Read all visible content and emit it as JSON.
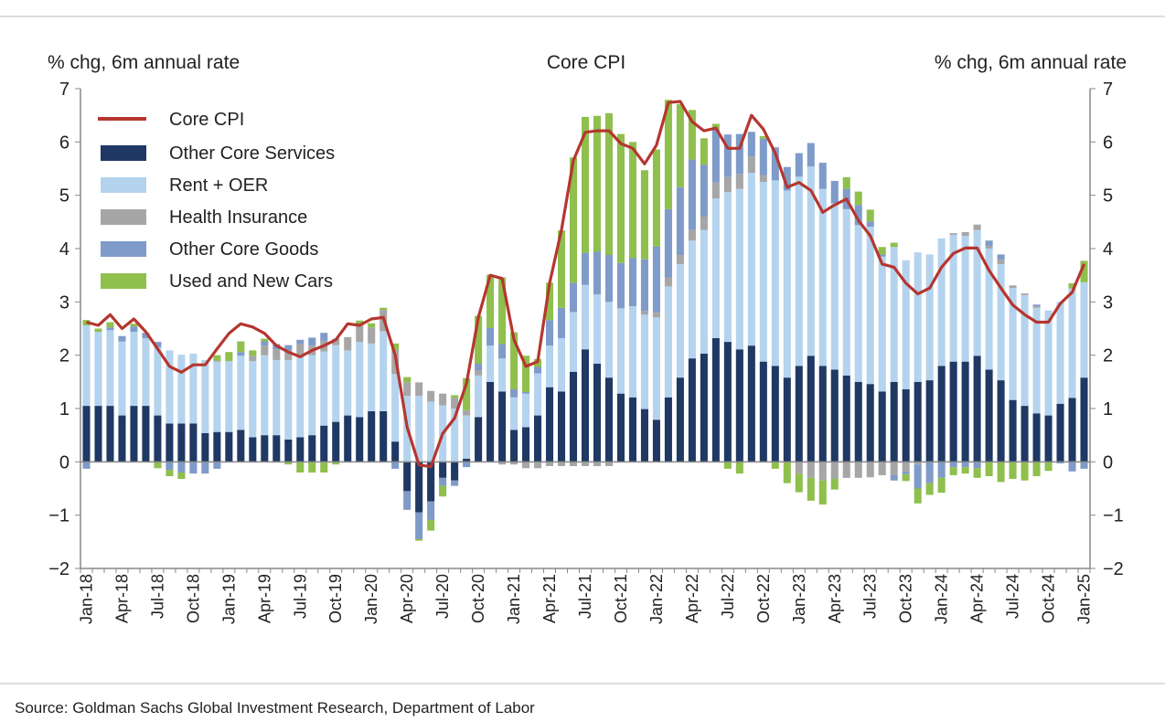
{
  "chart_data": {
    "type": "bar",
    "title": "Core CPI",
    "ylabel_left": "% chg, 6m annual rate",
    "ylabel_right": "% chg, 6m annual rate",
    "ylim": [
      -2,
      7
    ],
    "yticks": [
      "7",
      "6",
      "5",
      "4",
      "3",
      "2",
      "1",
      "0",
      "−1",
      "−2"
    ],
    "ytick_values": [
      7,
      6,
      5,
      4,
      3,
      2,
      1,
      0,
      -1,
      -2
    ],
    "xtick_labels": [
      "Jan-18",
      "Apr-18",
      "Jul-18",
      "Oct-18",
      "Jan-19",
      "Apr-19",
      "Jul-19",
      "Oct-19",
      "Jan-20",
      "Apr-20",
      "Jul-20",
      "Oct-20",
      "Jan-21",
      "Apr-21",
      "Jul-21",
      "Oct-21",
      "Jan-22",
      "Apr-22",
      "Jul-22",
      "Oct-22",
      "Jan-23",
      "Apr-23",
      "Jul-23",
      "Oct-23",
      "Jan-24",
      "Apr-24",
      "Jul-24",
      "Oct-24",
      "Jan-25"
    ],
    "n_months": 85,
    "legend_position": "top-left",
    "line": {
      "name": "Core CPI",
      "color": "#b5362f",
      "values": [
        2.62,
        2.56,
        2.76,
        2.5,
        2.68,
        2.44,
        2.12,
        1.79,
        1.68,
        1.82,
        1.82,
        2.12,
        2.41,
        2.59,
        2.53,
        2.41,
        2.18,
        2.06,
        1.97,
        2.09,
        2.18,
        2.29,
        2.59,
        2.56,
        2.68,
        2.71,
        2.0,
        0.65,
        -0.06,
        -0.09,
        0.53,
        0.82,
        1.47,
        2.71,
        3.5,
        3.44,
        2.29,
        1.79,
        1.88,
        3.35,
        4.35,
        5.65,
        6.18,
        6.21,
        6.21,
        5.97,
        5.88,
        5.59,
        5.94,
        6.74,
        6.76,
        6.38,
        6.21,
        6.26,
        5.88,
        5.88,
        6.5,
        6.24,
        5.79,
        5.15,
        5.24,
        5.09,
        4.68,
        4.82,
        4.93,
        4.53,
        4.24,
        3.71,
        3.65,
        3.35,
        3.15,
        3.26,
        3.65,
        3.91,
        4.01,
        4.01,
        3.59,
        3.26,
        2.94,
        2.76,
        2.62,
        2.62,
        2.97,
        3.18,
        3.71
      ]
    },
    "series": [
      {
        "name": "Other Core Services",
        "color": "#1f3864",
        "values": [
          1.05,
          1.05,
          1.05,
          0.87,
          1.05,
          1.05,
          0.87,
          0.72,
          0.72,
          0.72,
          0.54,
          0.56,
          0.56,
          0.6,
          0.46,
          0.5,
          0.5,
          0.42,
          0.46,
          0.5,
          0.68,
          0.75,
          0.87,
          0.84,
          0.95,
          0.95,
          0.38,
          -0.55,
          -0.95,
          -0.74,
          -0.3,
          -0.35,
          0.06,
          0.84,
          1.5,
          1.32,
          0.6,
          0.65,
          0.87,
          1.4,
          1.32,
          1.69,
          2.11,
          1.84,
          1.58,
          1.28,
          1.21,
          0.99,
          0.79,
          1.21,
          1.58,
          1.94,
          2.03,
          2.32,
          2.25,
          2.11,
          2.18,
          1.88,
          1.8,
          1.58,
          1.8,
          1.99,
          1.8,
          1.73,
          1.62,
          1.5,
          1.46,
          1.32,
          1.5,
          1.36,
          1.5,
          1.53,
          1.8,
          1.88,
          1.88,
          1.99,
          1.73,
          1.53,
          1.16,
          1.05,
          0.91,
          0.87,
          1.09,
          1.2,
          1.58
        ]
      },
      {
        "name": "Rent + OER",
        "color": "#b4d3ee",
        "values": [
          1.51,
          1.39,
          1.42,
          1.39,
          1.39,
          1.27,
          1.28,
          1.37,
          1.29,
          1.31,
          1.37,
          1.32,
          1.33,
          1.39,
          1.43,
          1.5,
          1.41,
          1.49,
          1.55,
          1.5,
          1.39,
          1.44,
          1.22,
          1.41,
          1.27,
          1.5,
          1.27,
          1.24,
          1.24,
          1.13,
          1.06,
          1.0,
          0.81,
          0.78,
          0.68,
          0.62,
          0.61,
          0.63,
          0.79,
          0.78,
          1.0,
          1.12,
          1.21,
          1.3,
          1.42,
          1.6,
          1.71,
          1.77,
          1.92,
          2.08,
          2.13,
          2.21,
          2.32,
          2.62,
          2.81,
          3.01,
          3.24,
          3.37,
          3.48,
          3.51,
          3.55,
          3.55,
          3.32,
          3.12,
          3.12,
          2.94,
          2.95,
          2.53,
          2.53,
          2.42,
          2.43,
          2.36,
          2.39,
          2.38,
          2.36,
          2.36,
          2.27,
          2.18,
          2.1,
          2.08,
          1.98,
          1.97,
          1.91,
          2.05,
          1.79
        ]
      },
      {
        "name": "Health Insurance",
        "color": "#a6a6a6",
        "values": [
          0,
          0,
          0,
          0,
          0,
          0,
          0,
          0,
          0,
          0,
          0,
          0.02,
          0,
          0,
          0.1,
          0.18,
          0.2,
          0.18,
          0.2,
          0.18,
          0.2,
          0.12,
          0.25,
          0.3,
          0.3,
          0.4,
          0.45,
          0.25,
          0.25,
          0.2,
          0.22,
          0.2,
          0.1,
          0.1,
          0,
          -0.05,
          -0.05,
          -0.12,
          -0.12,
          -0.08,
          -0.08,
          -0.08,
          -0.08,
          -0.08,
          -0.08,
          0,
          0,
          0.07,
          0.1,
          0.17,
          0.17,
          0.2,
          0.25,
          0.3,
          0.28,
          0.28,
          0.3,
          0.13,
          0,
          0,
          -0.22,
          -0.3,
          -0.35,
          -0.32,
          -0.3,
          -0.3,
          -0.29,
          -0.25,
          -0.25,
          -0.18,
          -0.05,
          0,
          0,
          0.03,
          0.07,
          0.1,
          0.05,
          0.08,
          0.05,
          0.03,
          0.03,
          0,
          0,
          0,
          0
        ]
      },
      {
        "name": "Other Core Goods",
        "color": "#7f9bc9",
        "values": [
          -0.13,
          0,
          0.05,
          0.1,
          0.1,
          0.1,
          0.1,
          -0.15,
          -0.2,
          -0.22,
          -0.22,
          -0.13,
          0,
          0.07,
          0,
          0.08,
          0.1,
          0.1,
          0.08,
          0.15,
          0.15,
          0,
          0,
          0,
          0,
          0,
          -0.13,
          -0.35,
          -0.5,
          -0.35,
          -0.15,
          -0.1,
          -0.1,
          0.12,
          0.33,
          0.27,
          0.15,
          0.03,
          0.12,
          0.48,
          0.57,
          0.55,
          0.6,
          0.8,
          0.88,
          0.85,
          0.9,
          0.97,
          1.23,
          1.28,
          1.27,
          1.32,
          0.97,
          1.0,
          0.8,
          0.75,
          0.47,
          0.68,
          0.62,
          0.44,
          0.44,
          0.44,
          0.49,
          0.42,
          0.38,
          0.38,
          0.1,
          0.04,
          -0.1,
          -0.05,
          -0.45,
          -0.4,
          -0.3,
          -0.1,
          -0.1,
          -0.12,
          0.1,
          0.1,
          0,
          0,
          0.03,
          0,
          -0.03,
          -0.18,
          -0.13
        ]
      },
      {
        "name": "Used and New Cars",
        "color": "#8fbf4d",
        "values": [
          0.1,
          0.06,
          0.1,
          0,
          0.05,
          0,
          -0.12,
          -0.12,
          -0.12,
          0,
          0,
          0.1,
          0.17,
          0.2,
          0.1,
          0.05,
          0,
          -0.05,
          -0.2,
          -0.2,
          -0.2,
          -0.05,
          0,
          0.1,
          0.08,
          0.04,
          0.12,
          0.1,
          -0.03,
          -0.2,
          -0.2,
          0.05,
          0.6,
          0.9,
          1.0,
          1.25,
          1.07,
          0.68,
          0.15,
          0.7,
          1.45,
          2.35,
          2.55,
          2.55,
          2.66,
          2.42,
          2.18,
          1.67,
          1.82,
          2.05,
          1.56,
          0.93,
          0.5,
          0.1,
          -0.13,
          -0.22,
          0,
          0.05,
          -0.13,
          -0.4,
          -0.35,
          -0.43,
          -0.45,
          -0.2,
          0.22,
          0.25,
          0.22,
          0.14,
          0.08,
          -0.13,
          -0.28,
          -0.22,
          -0.28,
          -0.15,
          -0.12,
          -0.18,
          -0.27,
          -0.38,
          -0.32,
          -0.35,
          -0.27,
          -0.17,
          0,
          0.1,
          0.4
        ]
      }
    ]
  },
  "source": "Source: Goldman Sachs Global Investment Research, Department of Labor"
}
